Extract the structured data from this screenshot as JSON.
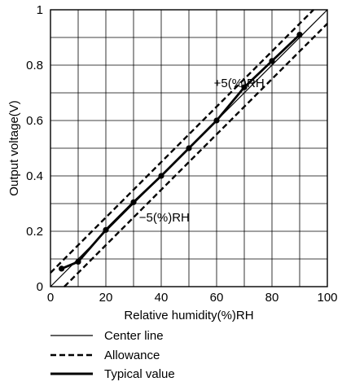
{
  "chart_data": {
    "type": "line",
    "title": "",
    "xlabel": "Relative humidity(%)RH",
    "ylabel": "Output voltage(V)",
    "xlim": [
      0,
      100
    ],
    "ylim": [
      0,
      1
    ],
    "grid": true,
    "legend_placement": "bottom",
    "x_ticks": [
      "0",
      "20",
      "40",
      "60",
      "80",
      "100"
    ],
    "y_ticks": [
      "0",
      "0.2",
      "0.4",
      "0.6",
      "0.8",
      "1"
    ],
    "series": [
      {
        "name": "Center line",
        "style": "thin-solid",
        "x": [
          0,
          100
        ],
        "y": [
          0.0,
          1.0
        ]
      },
      {
        "name": "Allowance",
        "style": "dashed",
        "x": [
          0,
          95
        ],
        "y": [
          0.05,
          1.0
        ]
      },
      {
        "name": "Allowance",
        "style": "dashed",
        "x": [
          5,
          100
        ],
        "y": [
          0.0,
          0.95
        ]
      },
      {
        "name": "Typical value",
        "style": "thick-solid",
        "x": [
          4,
          10,
          20,
          30,
          40,
          50,
          60,
          70,
          80,
          90
        ],
        "y": [
          0.065,
          0.09,
          0.205,
          0.305,
          0.4,
          0.5,
          0.6,
          0.72,
          0.815,
          0.91
        ]
      }
    ],
    "annotations": [
      {
        "text": "+5(%)RH",
        "x": 59,
        "y": 0.72
      },
      {
        "text": "−5(%)RH",
        "x": 32,
        "y": 0.235
      }
    ],
    "colors": {
      "line": "#000000",
      "grid": "#000000",
      "background": "#ffffff"
    }
  }
}
